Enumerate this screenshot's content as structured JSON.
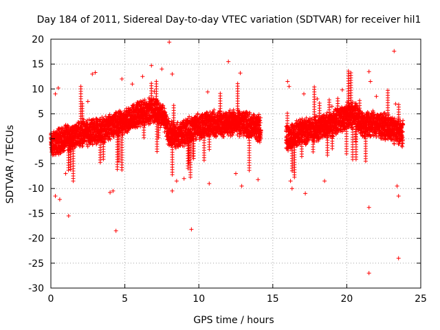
{
  "chart_data": {
    "type": "scatter",
    "title": "Day 184 of 2011, Sidereal Day-to-day VTEC variation (SDTVAR) for receiver hil1",
    "xlabel": "GPS time / hours",
    "ylabel": "SDTVAR / TECUs",
    "xlim": [
      0,
      25
    ],
    "ylim": [
      -30,
      20
    ],
    "xticks": [
      0,
      5,
      10,
      15,
      20,
      25
    ],
    "yticks": [
      -30,
      -25,
      -20,
      -15,
      -10,
      -5,
      0,
      5,
      10,
      15,
      20
    ],
    "grid": true,
    "marker": "+",
    "color": "#ff0000",
    "segments": [
      {
        "x_start": 0.0,
        "x_end": 14.2
      },
      {
        "x_start": 15.9,
        "x_end": 23.8
      }
    ],
    "trend": [
      {
        "x": 0.0,
        "y": -1.0
      },
      {
        "x": 1.0,
        "y": 0.0
      },
      {
        "x": 2.0,
        "y": 1.0
      },
      {
        "x": 3.0,
        "y": 1.5
      },
      {
        "x": 4.0,
        "y": 2.2
      },
      {
        "x": 5.0,
        "y": 3.5
      },
      {
        "x": 6.0,
        "y": 5.0
      },
      {
        "x": 7.0,
        "y": 5.8
      },
      {
        "x": 7.6,
        "y": 4.5
      },
      {
        "x": 8.0,
        "y": 1.0
      },
      {
        "x": 8.5,
        "y": 0.5
      },
      {
        "x": 9.0,
        "y": 1.2
      },
      {
        "x": 10.0,
        "y": 2.5
      },
      {
        "x": 11.0,
        "y": 3.0
      },
      {
        "x": 12.0,
        "y": 3.2
      },
      {
        "x": 13.0,
        "y": 3.0
      },
      {
        "x": 14.2,
        "y": 2.0
      },
      {
        "x": 15.9,
        "y": 0.0
      },
      {
        "x": 17.0,
        "y": 1.5
      },
      {
        "x": 18.0,
        "y": 2.0
      },
      {
        "x": 19.0,
        "y": 3.0
      },
      {
        "x": 20.0,
        "y": 4.5
      },
      {
        "x": 20.6,
        "y": 5.0
      },
      {
        "x": 21.0,
        "y": 3.0
      },
      {
        "x": 22.0,
        "y": 3.0
      },
      {
        "x": 23.0,
        "y": 2.0
      },
      {
        "x": 23.8,
        "y": 1.0
      }
    ],
    "outliers": [
      {
        "x": 0.3,
        "y": 9.0
      },
      {
        "x": 0.5,
        "y": 10.2
      },
      {
        "x": 0.3,
        "y": -11.5
      },
      {
        "x": 0.6,
        "y": -12.2
      },
      {
        "x": 1.2,
        "y": -15.5
      },
      {
        "x": 1.0,
        "y": -7.0
      },
      {
        "x": 2.8,
        "y": 13.0
      },
      {
        "x": 3.0,
        "y": 13.3
      },
      {
        "x": 2.5,
        "y": 7.5
      },
      {
        "x": 4.0,
        "y": -10.8
      },
      {
        "x": 4.2,
        "y": -10.5
      },
      {
        "x": 4.4,
        "y": -18.5
      },
      {
        "x": 4.8,
        "y": 12.0
      },
      {
        "x": 5.5,
        "y": 11.0
      },
      {
        "x": 6.2,
        "y": 12.5
      },
      {
        "x": 6.8,
        "y": 14.7
      },
      {
        "x": 7.5,
        "y": 14.0
      },
      {
        "x": 7.0,
        "y": 9.5
      },
      {
        "x": 8.0,
        "y": 19.4
      },
      {
        "x": 8.2,
        "y": 13.0
      },
      {
        "x": 8.2,
        "y": -10.5
      },
      {
        "x": 8.5,
        "y": -8.5
      },
      {
        "x": 9.0,
        "y": -8.0
      },
      {
        "x": 9.5,
        "y": -18.2
      },
      {
        "x": 10.6,
        "y": 9.4
      },
      {
        "x": 10.7,
        "y": -9.0
      },
      {
        "x": 12.0,
        "y": 15.5
      },
      {
        "x": 12.8,
        "y": 13.2
      },
      {
        "x": 12.5,
        "y": -7.0
      },
      {
        "x": 12.9,
        "y": -9.5
      },
      {
        "x": 14.0,
        "y": -8.2
      },
      {
        "x": 16.0,
        "y": 11.5
      },
      {
        "x": 16.1,
        "y": 10.5
      },
      {
        "x": 16.2,
        "y": -8.5
      },
      {
        "x": 16.3,
        "y": -10.0
      },
      {
        "x": 17.1,
        "y": 9.0
      },
      {
        "x": 17.2,
        "y": -11.0
      },
      {
        "x": 18.0,
        "y": 8.0
      },
      {
        "x": 18.5,
        "y": -8.5
      },
      {
        "x": 19.0,
        "y": 6.5
      },
      {
        "x": 19.7,
        "y": 9.8
      },
      {
        "x": 21.5,
        "y": 13.5
      },
      {
        "x": 21.6,
        "y": 11.5
      },
      {
        "x": 21.5,
        "y": -13.8
      },
      {
        "x": 21.5,
        "y": -27.0
      },
      {
        "x": 22.0,
        "y": 8.5
      },
      {
        "x": 23.2,
        "y": 17.6
      },
      {
        "x": 23.3,
        "y": 7.0
      },
      {
        "x": 23.4,
        "y": -9.5
      },
      {
        "x": 23.5,
        "y": -11.5
      },
      {
        "x": 23.5,
        "y": -24.0
      }
    ]
  }
}
